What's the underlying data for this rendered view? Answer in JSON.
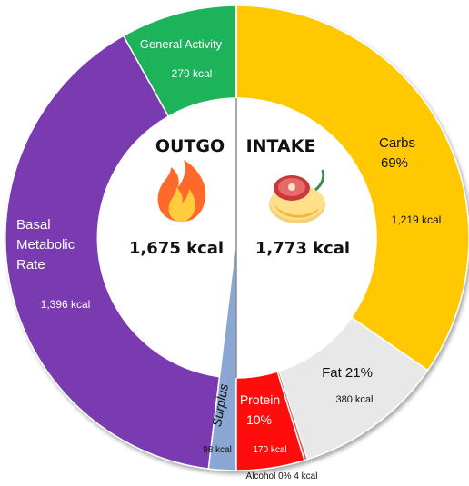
{
  "chart_data": {
    "type": "pie",
    "center_labels": {
      "outgo_title": "OUTGO",
      "outgo_total": "1,675 kcal",
      "intake_title": "INTAKE",
      "intake_total": "1,773 kcal"
    },
    "outgo_slices": [
      {
        "name": "General Activity",
        "value": 279,
        "value_label": "279 kcal",
        "color": "#1db35a"
      },
      {
        "name": "Basal Metabolic Rate",
        "value": 1396,
        "value_label": "1,396 kcal",
        "color": "#7a3bb0"
      },
      {
        "name": "Surplus",
        "value": 98,
        "value_label": "98 kcal",
        "color": "#8aa6d2"
      }
    ],
    "intake_slices": [
      {
        "name": "Carbs",
        "percent": "69%",
        "value": 1219,
        "value_label": "1,219 kcal",
        "color": "#ffc800"
      },
      {
        "name": "Fat",
        "percent": "21%",
        "value": 380,
        "value_label": "380 kcal",
        "color": "#e8e8e8"
      },
      {
        "name": "Alcohol",
        "percent": "0%",
        "value": 4,
        "value_label": "4 kcal",
        "color": "#d96060"
      },
      {
        "name": "Protein",
        "percent": "10%",
        "value": 170,
        "value_label": "170 kcal",
        "color": "#ff0a0a"
      }
    ],
    "labels": {
      "general_activity": "General Activity",
      "general_activity_kcal": "279 kcal",
      "bmr_line1": "Basal",
      "bmr_line2": "Metabolic",
      "bmr_line3": "Rate",
      "bmr_kcal": "1,396 kcal",
      "surplus": "Surplus",
      "surplus_kcal": "98 kcal",
      "carbs": "Carbs",
      "carbs_pct": "69%",
      "carbs_kcal": "1,219 kcal",
      "fat": "Fat 21%",
      "fat_kcal": "380 kcal",
      "protein": "Protein",
      "protein_pct": "10%",
      "protein_kcal": "170 kcal",
      "alcohol": "Alcohol 0% 4 kcal"
    },
    "icons": {
      "outgo": "flame-icon",
      "intake": "food-icon"
    }
  }
}
